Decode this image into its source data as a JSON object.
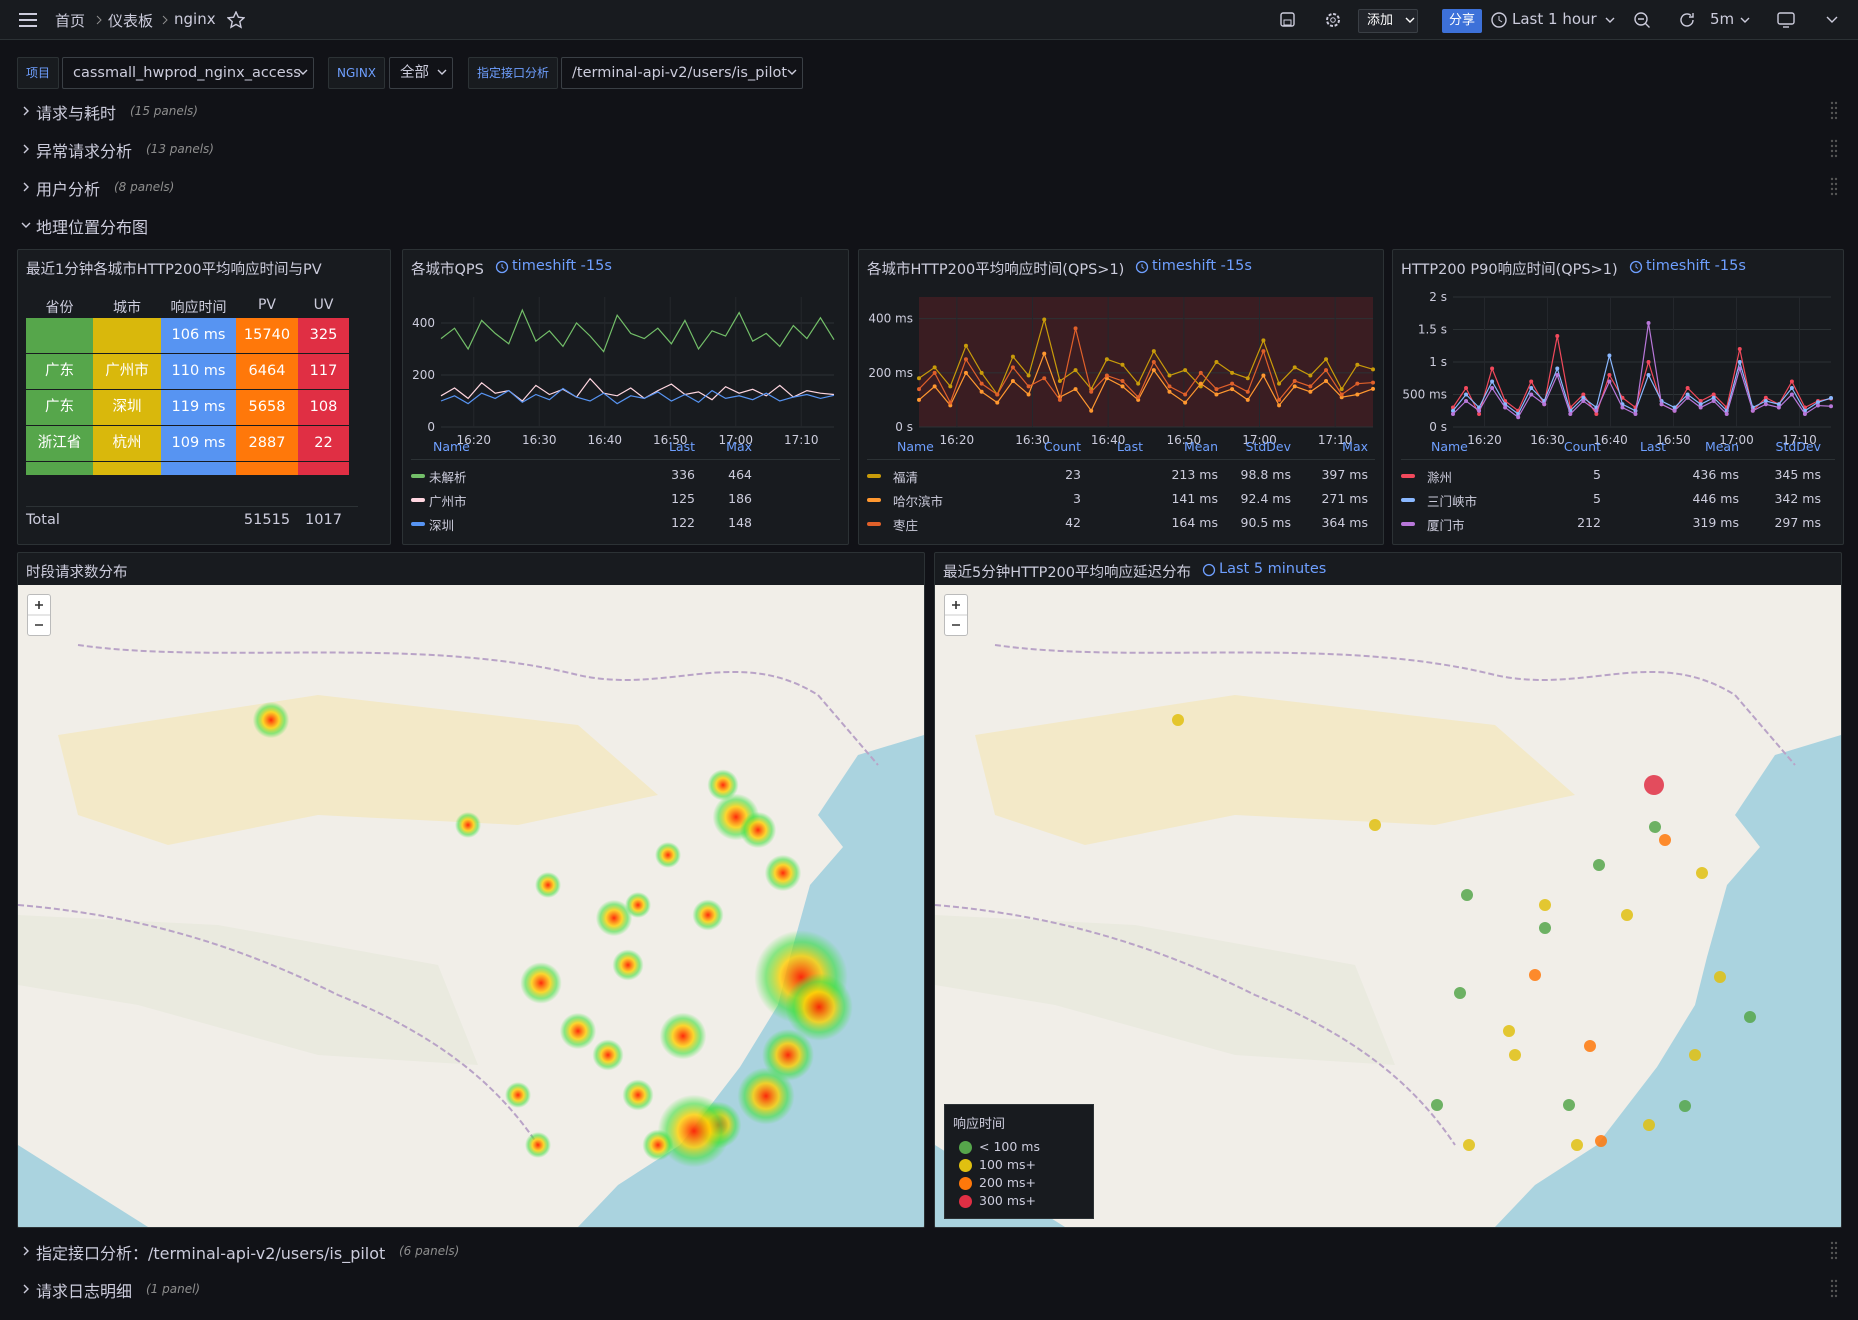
{
  "breadcrumb": [
    "首页",
    "仪表板",
    "nginx"
  ],
  "toolbar": {
    "add": "添加",
    "share": "分享",
    "time_range": "Last 1 hour",
    "refresh": "5m"
  },
  "variables": [
    {
      "label": "项目",
      "value": "cassmall_hwprod_nginx_access"
    },
    {
      "label": "NGINX",
      "value": "全部"
    },
    {
      "label": "指定接口分析",
      "value": "/terminal-api-v2/users/is_pilot"
    }
  ],
  "rows_top": [
    {
      "title": "请求与耗时",
      "note": "(15 panels)"
    },
    {
      "title": "异常请求分析",
      "note": "(13 panels)"
    },
    {
      "title": "用户分析",
      "note": "(8 panels)"
    },
    {
      "title": "地理位置分布图"
    }
  ],
  "table_panel": {
    "title": "最近1分钟各城市HTTP200平均响应时间与PV",
    "columns": [
      "省份",
      "城市",
      "响应时间",
      "PV",
      "UV"
    ],
    "rows": [
      [
        null,
        null,
        "106 ms",
        15740,
        325
      ],
      [
        "广东",
        "广州市",
        "110 ms",
        6464,
        117
      ],
      [
        "广东",
        "深圳",
        "119 ms",
        5658,
        108
      ],
      [
        "浙江省",
        "杭州",
        "109 ms",
        2887,
        22
      ]
    ],
    "total_label": "Total",
    "total": [
      51515,
      1017
    ]
  },
  "ts_panels": [
    {
      "title": "各城市QPS",
      "timeshift": "timeshift -15s",
      "ylim": [
        0,
        500
      ],
      "yticks": [
        0,
        200,
        400
      ],
      "xticks": [
        "16:20",
        "16:30",
        "16:40",
        "16:50",
        "17:00",
        "17:10"
      ],
      "legend_columns": [
        "Name",
        "Last",
        "Max"
      ],
      "series": [
        {
          "name": "未解析",
          "color": "#73bf69",
          "stats": [
            336,
            464
          ],
          "values": [
            340,
            380,
            300,
            410,
            360,
            320,
            450,
            330,
            370,
            310,
            400,
            350,
            290,
            430,
            360,
            340,
            380,
            320,
            410,
            300,
            370,
            350,
            440,
            330,
            360,
            310,
            390,
            340,
            420,
            336
          ]
        },
        {
          "name": "广州市",
          "color": "#ffd6e0",
          "stats": [
            125,
            186
          ],
          "values": [
            120,
            150,
            110,
            170,
            130,
            140,
            100,
            160,
            125,
            145,
            115,
            186,
            130,
            120,
            150,
            110,
            140,
            165,
            125,
            135,
            105,
            155,
            130,
            145,
            120,
            160,
            115,
            140,
            130,
            125
          ]
        },
        {
          "name": "深圳",
          "color": "#5794f2",
          "stats": [
            122,
            148
          ],
          "values": [
            100,
            120,
            90,
            130,
            110,
            140,
            95,
            125,
            105,
            148,
            115,
            100,
            130,
            90,
            120,
            110,
            135,
            100,
            125,
            95,
            140,
            110,
            120,
            105,
            130,
            100,
            115,
            125,
            110,
            122
          ]
        }
      ]
    },
    {
      "title": "各城市HTTP200平均响应时间(QPS>1)",
      "timeshift": "timeshift -15s",
      "ylim": [
        0,
        480
      ],
      "yticks": [
        {
          "value": 0,
          "label": "0 s"
        },
        {
          "value": 200,
          "label": "200 ms"
        },
        {
          "value": 400,
          "label": "400 ms"
        }
      ],
      "xticks": [
        "16:20",
        "16:30",
        "16:40",
        "16:50",
        "17:00",
        "17:10"
      ],
      "legend_columns": [
        "Name",
        "Count",
        "Last",
        "Mean",
        "StdDev",
        "Max"
      ],
      "series": [
        {
          "name": "福清",
          "color": "#c89b0a",
          "stats": [
            23,
            null,
            "213 ms",
            "98.8 ms",
            "397 ms"
          ],
          "values": [
            180,
            220,
            150,
            300,
            200,
            120,
            260,
            190,
            397,
            170,
            210,
            140,
            250,
            230,
            160,
            280,
            190,
            210,
            150,
            240,
            200,
            180,
            320,
            160,
            220,
            190,
            250,
            140,
            230,
            213
          ]
        },
        {
          "name": "哈尔滨市",
          "color": "#ff9830",
          "stats": [
            3,
            null,
            "141 ms",
            "92.4 ms",
            "271 ms"
          ],
          "values": [
            100,
            150,
            80,
            200,
            130,
            90,
            170,
            120,
            271,
            110,
            140,
            60,
            180,
            150,
            100,
            210,
            130,
            90,
            160,
            120,
            140,
            100,
            190,
            80,
            150,
            130,
            170,
            110,
            120,
            141
          ]
        },
        {
          "name": "枣庄",
          "color": "#e0602a",
          "stats": [
            42,
            null,
            "164 ms",
            "90.5 ms",
            "364 ms"
          ],
          "values": [
            140,
            200,
            90,
            250,
            160,
            120,
            220,
            150,
            180,
            100,
            364,
            130,
            190,
            170,
            110,
            240,
            150,
            120,
            200,
            140,
            160,
            130,
            280,
            100,
            170,
            150,
            210,
            120,
            160,
            164
          ]
        }
      ]
    },
    {
      "title": "HTTP200 P90响应时间(QPS>1)",
      "timeshift": "timeshift -15s",
      "ylim": [
        0,
        2000
      ],
      "yticks": [
        {
          "value": 0,
          "label": "0 s"
        },
        {
          "value": 500,
          "label": "500 ms"
        },
        {
          "value": 1000,
          "label": "1 s"
        },
        {
          "value": 1500,
          "label": "1.5 s"
        },
        {
          "value": 2000,
          "label": "2 s"
        }
      ],
      "xticks": [
        "16:20",
        "16:30",
        "16:40",
        "16:50",
        "17:00",
        "17:10"
      ],
      "legend_columns": [
        "Name",
        "Count",
        "Last",
        "Mean",
        "StdDev"
      ],
      "series": [
        {
          "name": "滁州",
          "color": "#f2495c",
          "stats": [
            5,
            null,
            "436 ms",
            "345 ms"
          ],
          "values": [
            300,
            600,
            200,
            900,
            400,
            250,
            700,
            350,
            1400,
            300,
            500,
            200,
            800,
            450,
            300,
            1000,
            350,
            250,
            600,
            400,
            500,
            300,
            1200,
            250,
            450,
            350,
            700,
            300,
            400,
            436
          ]
        },
        {
          "name": "三门峡市",
          "color": "#8ab8ff",
          "stats": [
            5,
            null,
            "446 ms",
            "342 ms"
          ],
          "values": [
            250,
            500,
            300,
            700,
            350,
            200,
            600,
            400,
            900,
            250,
            450,
            300,
            1100,
            350,
            250,
            800,
            400,
            300,
            500,
            350,
            450,
            250,
            1000,
            300,
            400,
            350,
            600,
            250,
            380,
            446
          ]
        },
        {
          "name": "厦门市",
          "color": "#b877d9",
          "stats": [
            212,
            null,
            "319 ms",
            "297 ms"
          ],
          "values": [
            200,
            400,
            250,
            600,
            300,
            150,
            500,
            350,
            800,
            200,
            400,
            250,
            700,
            300,
            200,
            1600,
            350,
            250,
            450,
            300,
            400,
            200,
            900,
            250,
            350,
            300,
            500,
            200,
            330,
            319
          ]
        }
      ]
    }
  ],
  "map_panels": [
    {
      "title": "时段请求数分布"
    },
    {
      "title": "最近5分钟HTTP200平均响应延迟分布",
      "time_label": "Last 5 minutes",
      "legend_title": "响应时间",
      "legend": [
        {
          "label": "< 100 ms",
          "color": "#56a64b"
        },
        {
          "label": "100 ms+",
          "color": "#e0c010"
        },
        {
          "label": "200 ms+",
          "color": "#ff780a"
        },
        {
          "label": "300 ms+",
          "color": "#e02f44"
        }
      ]
    }
  ],
  "rows_bottom": [
    {
      "title": "指定接口分析：/terminal-api-v2/users/is_pilot",
      "note": "(6 panels)"
    },
    {
      "title": "请求日志明细",
      "note": "(1 panel)"
    }
  ]
}
